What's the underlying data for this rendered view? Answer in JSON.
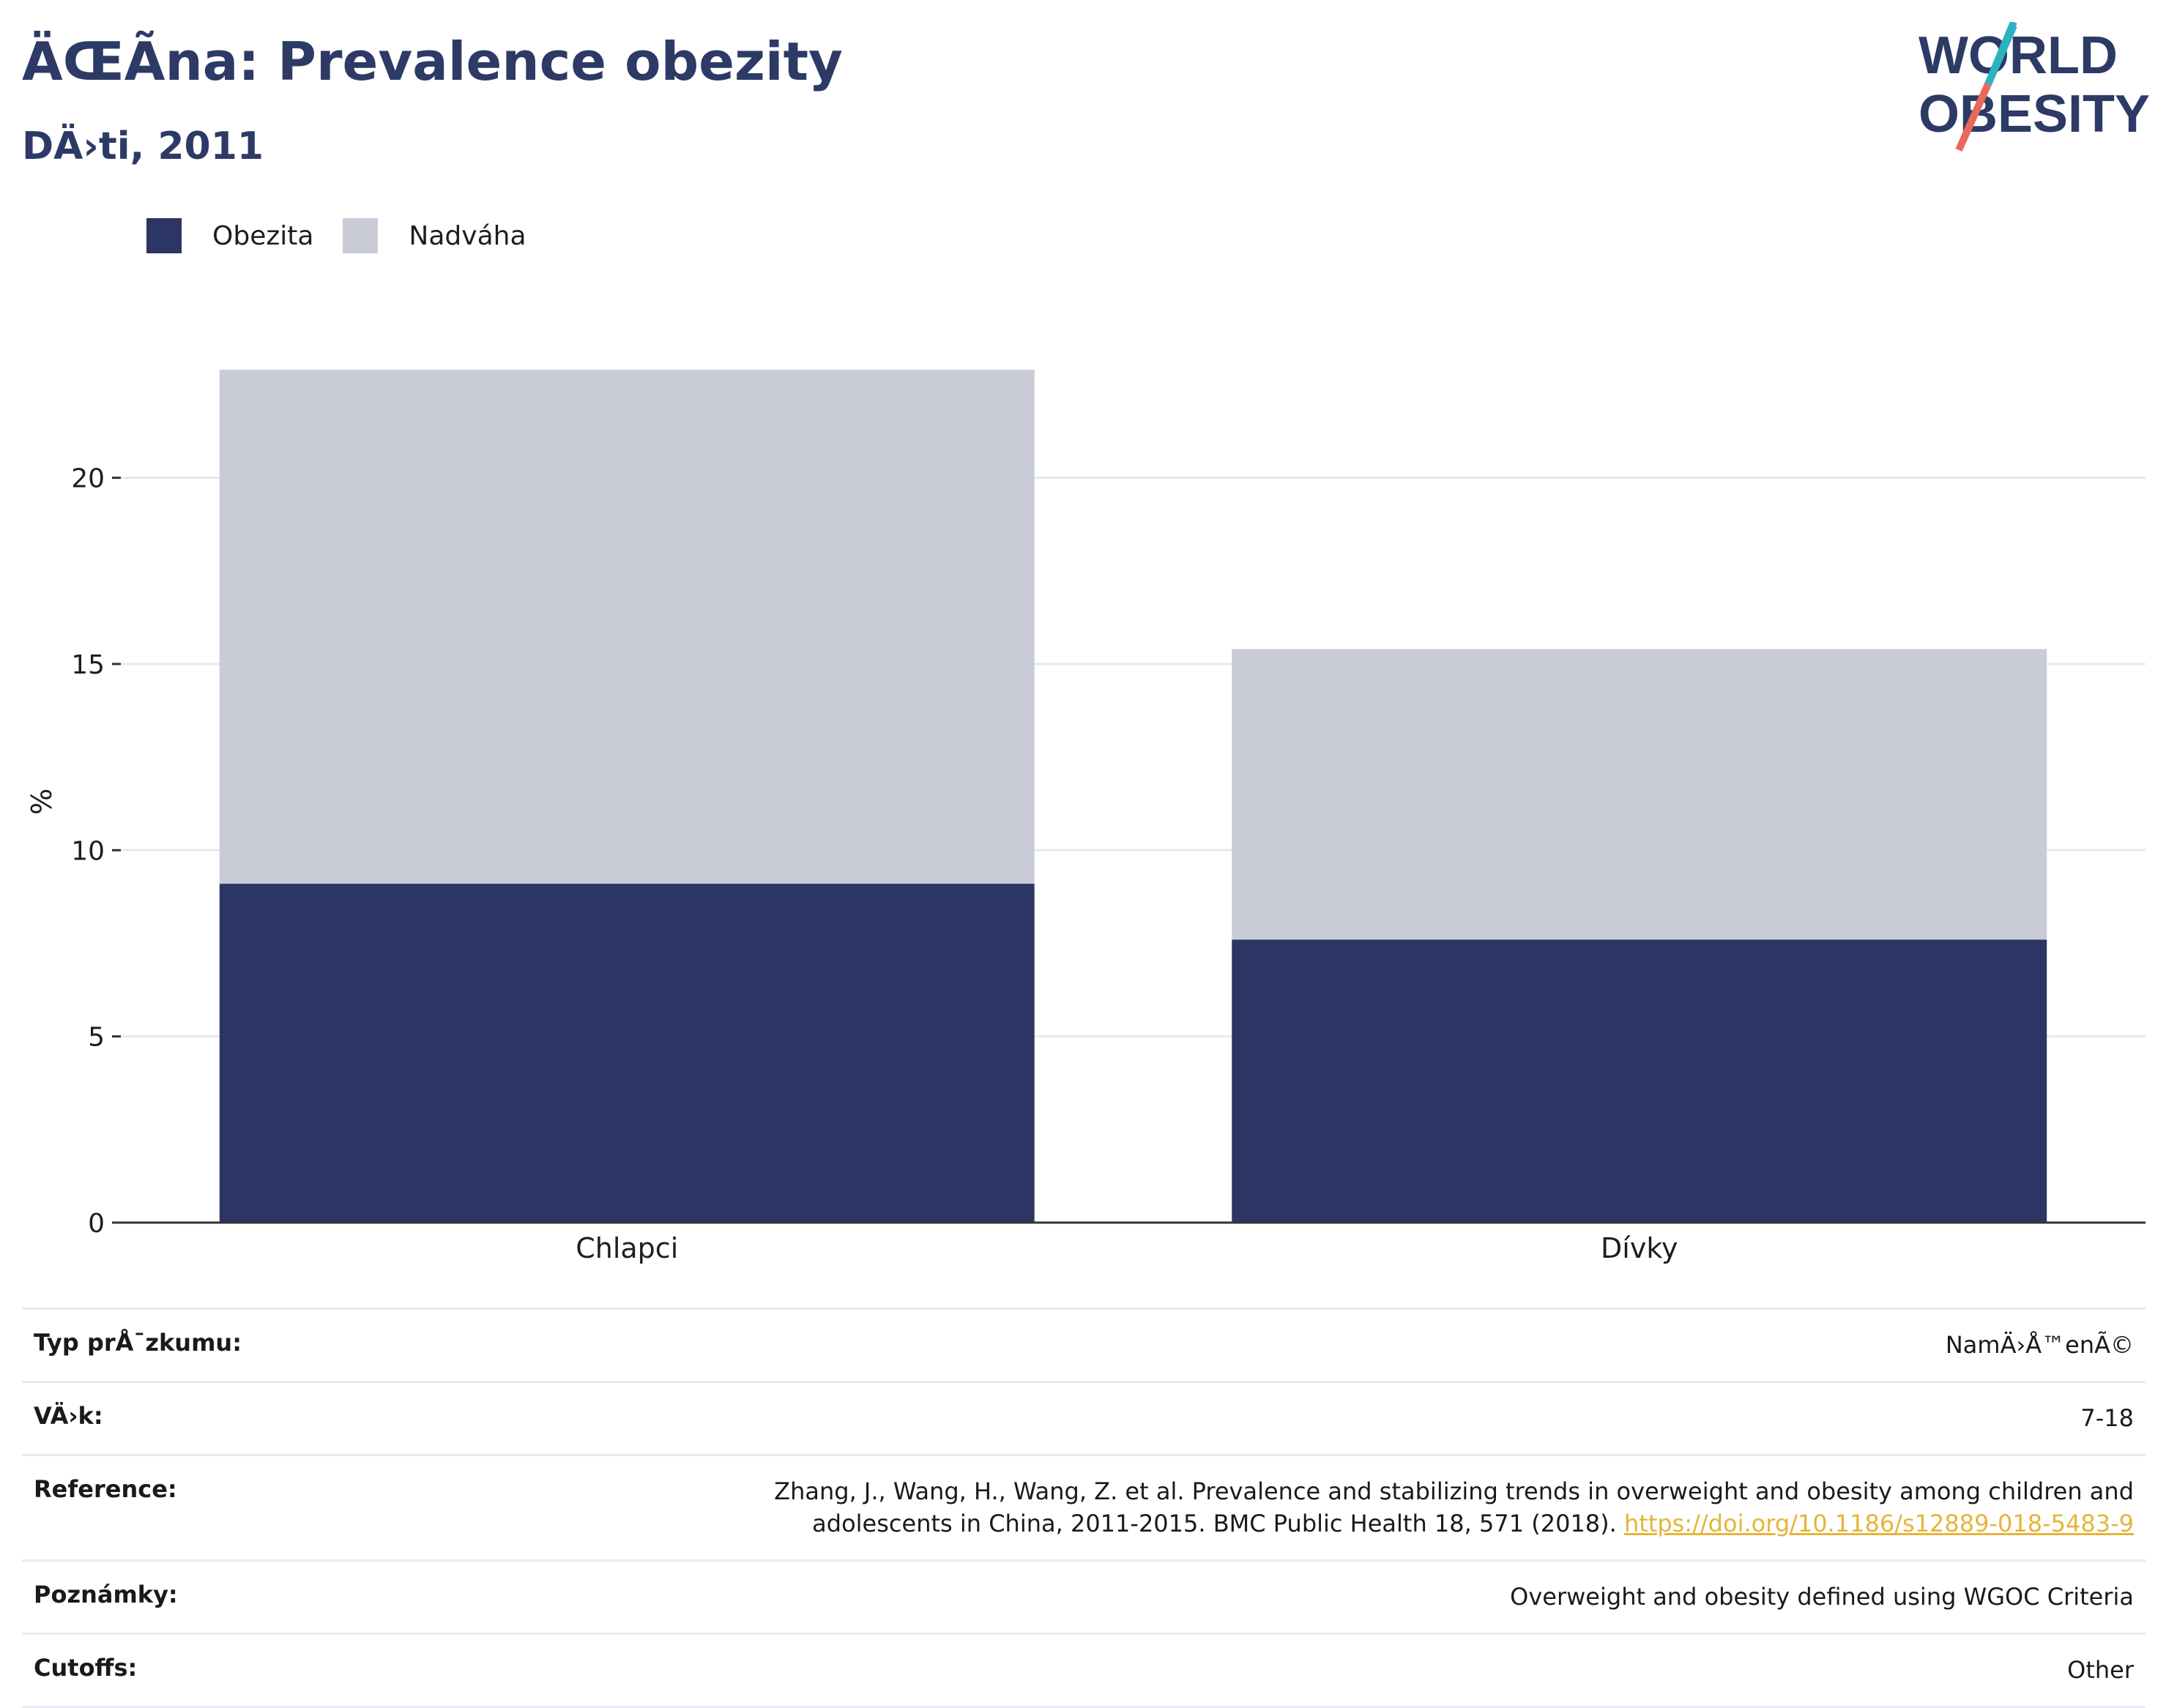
{
  "header": {
    "title": "ÄŒÃ­na: Prevalence obezity",
    "subtitle": "DÄ›ti, 2011",
    "logo_line1": "WORLD",
    "logo_line2": "OBESITY"
  },
  "legend": [
    {
      "label": "Obezita",
      "color": "#2b3664"
    },
    {
      "label": "Nadváha",
      "color": "#c9ccd7"
    }
  ],
  "chart_data": {
    "type": "bar",
    "stacked": true,
    "categories": [
      "Chlapci",
      "Dívky"
    ],
    "series": [
      {
        "name": "Obezita",
        "color": "#2b3664",
        "values": [
          9.1,
          7.6
        ]
      },
      {
        "name": "Nadváha",
        "color": "#c9ccd7",
        "values": [
          13.8,
          7.8
        ]
      }
    ],
    "ylabel": "%",
    "ylim": [
      0,
      23
    ],
    "yticks": [
      0,
      5,
      10,
      15,
      20
    ],
    "grid": true,
    "legend_position": "top-left"
  },
  "meta": [
    {
      "key": "Typ prÅ¯zkumu:",
      "value": "NamÄ›Å™enÃ©"
    },
    {
      "key": "VÄ›k:",
      "value": "7-18"
    },
    {
      "key": "Reference:",
      "value": "Zhang, J., Wang, H., Wang, Z. et al. Prevalence and stabilizing trends in overweight and obesity among children and adolescents in China, 2011-2015. BMC Public Health 18, 571 (2018).",
      "link": "https://doi.org/10.1186/s12889-018-5483-9"
    },
    {
      "key": "Poznámky:",
      "value": "Overweight and obesity defined using WGOC Criteria"
    },
    {
      "key": "Cutoffs:",
      "value": "Other"
    }
  ]
}
